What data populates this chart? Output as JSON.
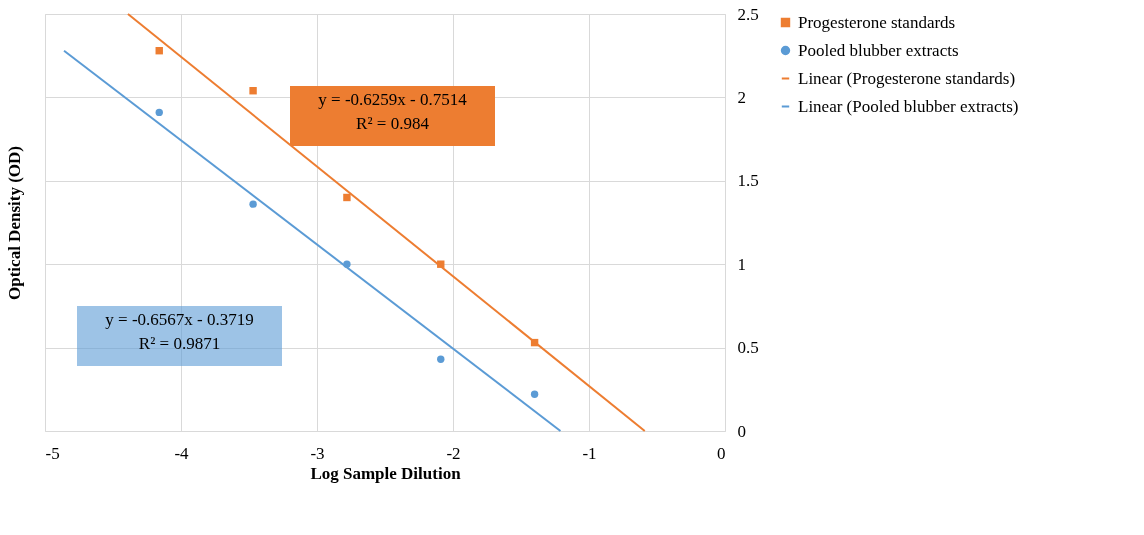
{
  "chart_data": {
    "type": "scatter",
    "xlabel": "Log Sample Dilution",
    "ylabel": "Optical Density (OD)",
    "xlim": [
      -5,
      0
    ],
    "xticks": [
      -5,
      -4,
      -3,
      -2,
      -1,
      0
    ],
    "ylim": [
      0,
      2.5
    ],
    "yticks": [
      0,
      0.5,
      1,
      1.5,
      2,
      2.5
    ],
    "grid": true,
    "legend": "right",
    "series": [
      {
        "name": "Progesterone standards",
        "marker": "square",
        "color": "#ed7d31",
        "x": [
          -4.16,
          -3.47,
          -2.78,
          -2.09,
          -1.4
        ],
        "values": [
          2.28,
          2.04,
          1.4,
          1.0,
          0.53
        ]
      },
      {
        "name": "Pooled blubber extracts",
        "marker": "circle",
        "color": "#5b9bd5",
        "x": [
          -4.16,
          -3.47,
          -2.78,
          -2.09,
          -1.4
        ],
        "values": [
          1.91,
          1.36,
          1.0,
          0.43,
          0.22
        ]
      },
      {
        "name": "Linear (Progesterone standards)",
        "type": "line",
        "color": "#ed7d31",
        "x": [
          -4.39,
          -0.59
        ],
        "values": [
          2.5,
          0
        ]
      },
      {
        "name": "Linear (Pooled blubber extracts)",
        "type": "line",
        "color": "#5b9bd5",
        "x": [
          -4.86,
          -1.21
        ],
        "values": [
          2.28,
          0
        ]
      }
    ],
    "annotations": [
      "y = -0.6259x - 0.7514\nR² = 0.984",
      "y = -0.6567x - 0.3719\nR² = 0.9871"
    ]
  }
}
